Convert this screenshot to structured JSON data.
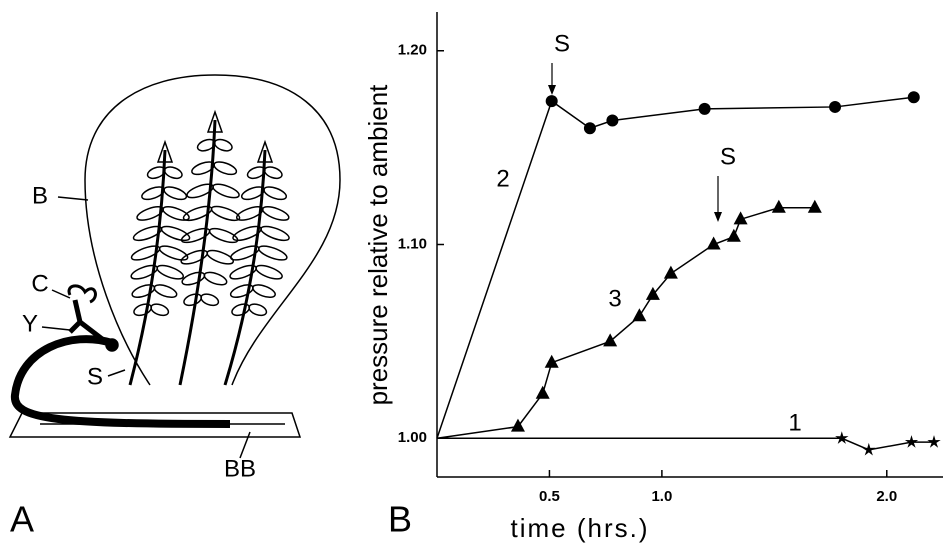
{
  "diagram": {
    "panel_label": "A",
    "labels": [
      "B",
      "C",
      "Y",
      "S",
      "BB"
    ]
  },
  "chart_data": {
    "type": "line",
    "panel_label": "B",
    "x_label": "time (hrs.)",
    "y_label": "pressure relative to ambient",
    "annotations": [
      "S",
      "S"
    ],
    "xlim": [
      0,
      2.25
    ],
    "xticks": [
      0.5,
      {
        "value": 1,
        "label": "1.0"
      },
      {
        "value": 2,
        "label": "2.0"
      }
    ],
    "ylim": [
      0.98,
      1.22
    ],
    "yticks": [
      {
        "value": 1,
        "label": "1.00"
      },
      {
        "value": 1.1,
        "label": "1.10"
      },
      {
        "value": 1.2,
        "label": "1.20"
      }
    ],
    "series": [
      {
        "name": "1",
        "color": "#000000",
        "marker": "star",
        "x": [
          0,
          1.8,
          1.92,
          2.11,
          2.21
        ],
        "values": [
          1.0,
          1.0,
          0.994,
          0.998,
          0.998
        ]
      },
      {
        "name": "2",
        "color": "#000000",
        "marker": "circle",
        "x": [
          0,
          0.51,
          0.68,
          0.78,
          1.19,
          1.77,
          2.12
        ],
        "values": [
          1.0,
          1.174,
          1.16,
          1.164,
          1.17,
          1.171,
          1.176
        ]
      },
      {
        "name": "3",
        "color": "#000000",
        "marker": "triangle",
        "x": [
          0,
          0.36,
          0.47,
          0.51,
          0.77,
          0.9,
          0.96,
          1.04,
          1.23,
          1.32,
          1.35,
          1.52,
          1.68
        ],
        "values": [
          1.0,
          1.006,
          1.023,
          1.039,
          1.05,
          1.063,
          1.074,
          1.085,
          1.1,
          1.104,
          1.113,
          1.119,
          1.119
        ]
      }
    ]
  }
}
